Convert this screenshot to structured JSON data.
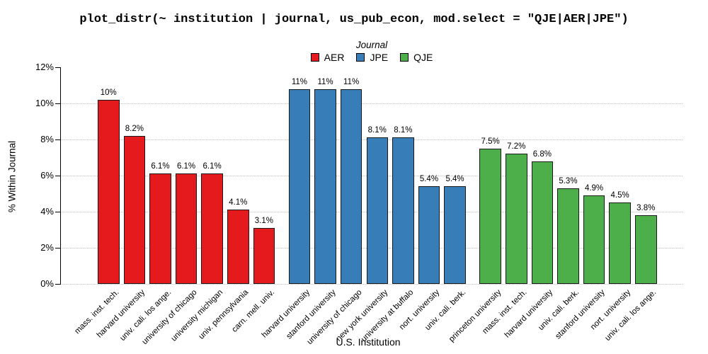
{
  "title": "plot_distr(~ institution | journal, us_pub_econ, mod.select = \"QJE|AER|JPE\")",
  "legend": {
    "title": "Journal",
    "items": [
      {
        "label": "AER",
        "color": "#E41A1C"
      },
      {
        "label": "JPE",
        "color": "#377EB8"
      },
      {
        "label": "QJE",
        "color": "#4DAF4A"
      }
    ]
  },
  "chart_data": {
    "type": "bar",
    "title": "plot_distr(~ institution | journal, us_pub_econ, mod.select = \"QJE|AER|JPE\")",
    "xlabel": "U.S. Institution",
    "ylabel": "% Within Journal",
    "ylim": [
      0,
      12
    ],
    "ytick_labels": [
      "0%",
      "2%",
      "4%",
      "6%",
      "8%",
      "10%",
      "12%"
    ],
    "grid": "horizontal dotted lines at 0%, 2%, 4%, 6%, 8%, 10%",
    "legend_position": "top-center",
    "series": [
      {
        "name": "AER",
        "color": "#E41A1C",
        "points": [
          {
            "x": "mass. inst. tech.",
            "y": 10.2,
            "label": "10%"
          },
          {
            "x": "harvard university",
            "y": 8.2,
            "label": "8.2%"
          },
          {
            "x": "univ. cali. los ange.",
            "y": 6.1,
            "label": "6.1%"
          },
          {
            "x": "university of chicago",
            "y": 6.1,
            "label": "6.1%"
          },
          {
            "x": "university michigan",
            "y": 6.1,
            "label": "6.1%"
          },
          {
            "x": "univ. pennsylvania",
            "y": 4.1,
            "label": "4.1%"
          },
          {
            "x": "carn. mell. univ.",
            "y": 3.1,
            "label": "3.1%"
          }
        ]
      },
      {
        "name": "JPE",
        "color": "#377EB8",
        "points": [
          {
            "x": "harvard university",
            "y": 10.8,
            "label": "11%"
          },
          {
            "x": "stanford university",
            "y": 10.8,
            "label": "11%"
          },
          {
            "x": "university of chicago",
            "y": 10.8,
            "label": "11%"
          },
          {
            "x": "new york university",
            "y": 8.1,
            "label": "8.1%"
          },
          {
            "x": "university at buffalo",
            "y": 8.1,
            "label": "8.1%"
          },
          {
            "x": "nort. university",
            "y": 5.4,
            "label": "5.4%"
          },
          {
            "x": "univ. cali. berk.",
            "y": 5.4,
            "label": "5.4%"
          }
        ]
      },
      {
        "name": "QJE",
        "color": "#4DAF4A",
        "points": [
          {
            "x": "princeton university",
            "y": 7.5,
            "label": "7.5%"
          },
          {
            "x": "mass. inst. tech.",
            "y": 7.2,
            "label": "7.2%"
          },
          {
            "x": "harvard university",
            "y": 6.8,
            "label": "6.8%"
          },
          {
            "x": "univ. cali. berk.",
            "y": 5.3,
            "label": "5.3%"
          },
          {
            "x": "stanford university",
            "y": 4.9,
            "label": "4.9%"
          },
          {
            "x": "nort. university",
            "y": 4.5,
            "label": "4.5%"
          },
          {
            "x": "univ. cali. los ange.",
            "y": 3.8,
            "label": "3.8%"
          }
        ]
      }
    ]
  }
}
